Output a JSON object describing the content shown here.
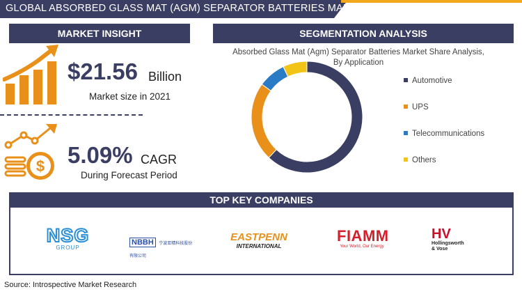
{
  "header": {
    "title": "GLOBAL ABSORBED GLASS MAT (AGM) SEPARATOR BATTERIES MARKET"
  },
  "market_insight": {
    "heading": "MARKET INSIGHT",
    "size_value": "$21.56",
    "size_unit": "Billion",
    "size_caption": "Market size in 2021",
    "cagr_value": "5.09%",
    "cagr_unit": "CAGR",
    "cagr_caption": "During Forecast Period"
  },
  "segmentation": {
    "heading": "SEGMENTATION ANALYSIS"
  },
  "chart_data": {
    "type": "pie",
    "title": "Absorbed Glass Mat (Agm) Separator Batteries Market Share Analysis, By Application",
    "categories": [
      "Automotive",
      "UPS",
      "Telecommunications",
      "Others"
    ],
    "values": [
      62,
      23,
      8,
      7
    ],
    "colors": [
      "#3b3e63",
      "#e8901a",
      "#2a7bc6",
      "#f2c418"
    ],
    "legend_position": "right",
    "donut": true
  },
  "companies": {
    "heading": "TOP KEY COMPANIES",
    "nsg": {
      "main": "NSG",
      "sub": "GROUP"
    },
    "nbbh": {
      "main": "NBBH",
      "sub": "宁波亚精科技股份有限公司"
    },
    "eastpenn": {
      "main": "EASTPENN",
      "sub": "INTERNATIONAL"
    },
    "fiamm": {
      "main": "FIAMM",
      "sub": "Your World, Our Energy"
    },
    "hv": {
      "main": "HV",
      "sub1": "Hollingsworth",
      "sub2": "& Vose"
    }
  },
  "footer": {
    "source": "Source: Introspective Market Research"
  },
  "colors": {
    "navy": "#3b3e63",
    "orange": "#e8901a",
    "gold": "#f3a81c"
  }
}
